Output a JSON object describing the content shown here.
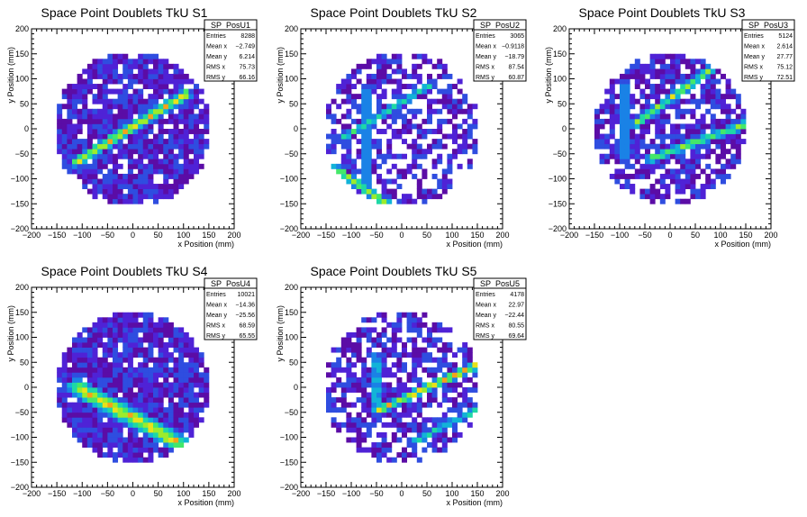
{
  "colors": {
    "background": "#ffffff",
    "frame": "#000000",
    "palette": [
      "#5b0ca6",
      "#4f22d6",
      "#2f4de0",
      "#1a82e6",
      "#12b3d8",
      "#1ed8a6",
      "#44e86a",
      "#9cec2c",
      "#e8e21a",
      "#f4a21a",
      "#ee5a16",
      "#d8140e"
    ]
  },
  "chart_data": [
    {
      "type": "heatmap",
      "title": "Space Point Doublets TkU S1",
      "xlabel": "x Position (mm)",
      "ylabel": "y Position (mm)",
      "xlim": [
        -200,
        200
      ],
      "ylim": [
        -200,
        200
      ],
      "xticks": [
        "−200",
        "−150",
        "−100",
        "−50",
        "0",
        "50",
        "100",
        "150",
        "200"
      ],
      "yticks": [
        "−200",
        "−150",
        "−100",
        "−50",
        "0",
        "50",
        "100",
        "150",
        "200"
      ],
      "stats_box": {
        "name": "SP_PosU1",
        "rows": [
          {
            "label": "Entries",
            "value": "8288"
          },
          {
            "label": "Mean x",
            "value": "−2.749"
          },
          {
            "label": "Mean y",
            "value": "6.214"
          },
          {
            "label": "RMS x",
            "value": "75.73"
          },
          {
            "label": "RMS y",
            "value": "66.16"
          }
        ]
      },
      "fill_radius": 155,
      "occupancy": 0.86,
      "tracks": [
        {
          "x1": -110,
          "y1": -65,
          "x2": 105,
          "y2": 70,
          "width": 12,
          "peak": 10
        }
      ]
    },
    {
      "type": "heatmap",
      "title": "Space Point Doublets TkU S2",
      "xlabel": "x Position (mm)",
      "ylabel": "y Position (mm)",
      "xlim": [
        -200,
        200
      ],
      "ylim": [
        -200,
        200
      ],
      "xticks": [
        "−200",
        "−150",
        "−100",
        "−50",
        "0",
        "50",
        "100",
        "150",
        "200"
      ],
      "yticks": [
        "−200",
        "−150",
        "−100",
        "−50",
        "0",
        "50",
        "100",
        "150",
        "200"
      ],
      "stats_box": {
        "name": "SP_PosU2",
        "rows": [
          {
            "label": "Entries",
            "value": "3065"
          },
          {
            "label": "Mean x",
            "value": "−0.9118"
          },
          {
            "label": "Mean y",
            "value": "−18.79"
          },
          {
            "label": "RMS x",
            "value": "87.54"
          },
          {
            "label": "RMS y",
            "value": "60.87"
          }
        ]
      },
      "fill_radius": 155,
      "occupancy": 0.55,
      "tracks": [
        {
          "x1": -70,
          "y1": -110,
          "x2": -70,
          "y2": 80,
          "width": 8,
          "peak": 6
        },
        {
          "x1": -130,
          "y1": -80,
          "x2": -30,
          "y2": -150,
          "width": 10,
          "peak": 9
        },
        {
          "x1": -120,
          "y1": -20,
          "x2": 60,
          "y2": 90,
          "width": 8,
          "peak": 6
        }
      ]
    },
    {
      "type": "heatmap",
      "title": "Space Point Doublets TkU S3",
      "xlabel": "x Position (mm)",
      "ylabel": "y Position (mm)",
      "xlim": [
        -200,
        200
      ],
      "ylim": [
        -200,
        200
      ],
      "xticks": [
        "−200",
        "−150",
        "−100",
        "−50",
        "0",
        "50",
        "100",
        "150",
        "200"
      ],
      "yticks": [
        "−200",
        "−150",
        "−100",
        "−50",
        "0",
        "50",
        "100",
        "150",
        "200"
      ],
      "stats_box": {
        "name": "SP_PosU3",
        "rows": [
          {
            "label": "Entries",
            "value": "5124"
          },
          {
            "label": "Mean x",
            "value": "2.614"
          },
          {
            "label": "Mean y",
            "value": "27.77"
          },
          {
            "label": "RMS x",
            "value": "75.12"
          },
          {
            "label": "RMS y",
            "value": "72.51"
          }
        ]
      },
      "fill_radius": 150,
      "occupancy": 0.72,
      "tracks": [
        {
          "x1": -90,
          "y1": -60,
          "x2": -90,
          "y2": 90,
          "width": 8,
          "peak": 6
        },
        {
          "x1": -70,
          "y1": 10,
          "x2": 110,
          "y2": 140,
          "width": 10,
          "peak": 8
        },
        {
          "x1": -40,
          "y1": -60,
          "x2": 150,
          "y2": 10,
          "width": 10,
          "peak": 8
        }
      ]
    },
    {
      "type": "heatmap",
      "title": "Space Point Doublets TkU S4",
      "xlabel": "x Position (mm)",
      "ylabel": "y Position (mm)",
      "xlim": [
        -200,
        200
      ],
      "ylim": [
        -200,
        200
      ],
      "xticks": [
        "−200",
        "−150",
        "−100",
        "−50",
        "0",
        "50",
        "100",
        "150",
        "200"
      ],
      "yticks": [
        "−200",
        "−150",
        "−100",
        "−50",
        "0",
        "50",
        "100",
        "150",
        "200"
      ],
      "stats_box": {
        "name": "SP_PosU4",
        "rows": [
          {
            "label": "Entries",
            "value": "10021"
          },
          {
            "label": "Mean x",
            "value": "−14.36"
          },
          {
            "label": "Mean y",
            "value": "−25.56"
          },
          {
            "label": "RMS x",
            "value": "68.59"
          },
          {
            "label": "RMS y",
            "value": "65.55"
          }
        ]
      },
      "fill_radius": 150,
      "occupancy": 0.93,
      "tracks": [
        {
          "x1": -110,
          "y1": 0,
          "x2": 90,
          "y2": -110,
          "width": 20,
          "peak": 10
        }
      ]
    },
    {
      "type": "heatmap",
      "title": "Space Point Doublets TkU S5",
      "xlabel": "x Position (mm)",
      "ylabel": "y Position (mm)",
      "xlim": [
        -200,
        200
      ],
      "ylim": [
        -200,
        200
      ],
      "xticks": [
        "−200",
        "−150",
        "−100",
        "−50",
        "0",
        "50",
        "100",
        "150",
        "200"
      ],
      "yticks": [
        "−200",
        "−150",
        "−100",
        "−50",
        "0",
        "50",
        "100",
        "150",
        "200"
      ],
      "stats_box": {
        "name": "SP_PosU5",
        "rows": [
          {
            "label": "Entries",
            "value": "4178"
          },
          {
            "label": "Mean x",
            "value": "22.97"
          },
          {
            "label": "Mean y",
            "value": "−22.44"
          },
          {
            "label": "RMS x",
            "value": "80.55"
          },
          {
            "label": "RMS y",
            "value": "69.64"
          }
        ]
      },
      "fill_radius": 155,
      "occupancy": 0.62,
      "tracks": [
        {
          "x1": -50,
          "y1": -50,
          "x2": -50,
          "y2": 60,
          "width": 8,
          "peak": 7
        },
        {
          "x1": -45,
          "y1": -45,
          "x2": 160,
          "y2": 50,
          "width": 10,
          "peak": 10
        },
        {
          "x1": 20,
          "y1": -110,
          "x2": 160,
          "y2": -40,
          "width": 8,
          "peak": 6
        }
      ]
    }
  ]
}
